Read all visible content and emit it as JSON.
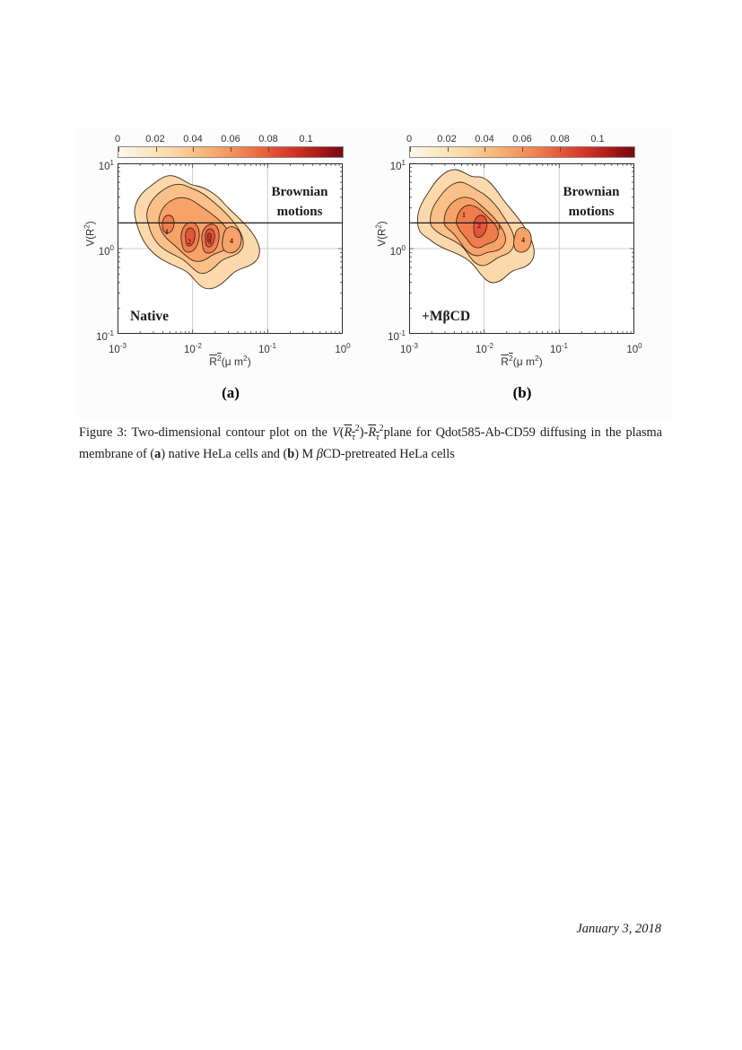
{
  "colors": {
    "contour_levels": [
      "#fbd9ac",
      "#fac089",
      "#f7a269",
      "#f07c4e",
      "#e5553a",
      "#c43227"
    ],
    "contour_stroke": "#3f2b16",
    "threshold_line": "#1a1a1a",
    "gridline": "#cccccc",
    "colorbar_min": "#fdf9ee",
    "colorbar_max": "#7a0b10"
  },
  "figure": {
    "colorbar": {
      "ticks": [
        "0",
        "0.02",
        "0.04",
        "0.06",
        "0.08",
        "0.1"
      ]
    },
    "axes": {
      "y_ticks": [
        {
          "b": "10",
          "e": "1"
        },
        {
          "b": "10",
          "e": "0"
        },
        {
          "b": "10",
          "e": "-1"
        }
      ],
      "x_ticks": [
        {
          "b": "10",
          "e": "-3"
        },
        {
          "b": "10",
          "e": "-2"
        },
        {
          "b": "10",
          "e": "-1"
        },
        {
          "b": "10",
          "e": "0"
        }
      ],
      "ylabel": {
        "pre": "V(R",
        "sup": "2",
        "post": ")"
      },
      "xlabel": {
        "r": "R",
        "rsup": "2",
        "mid": "(μ m",
        "msup": "2",
        "post": ")"
      }
    },
    "panels": [
      {
        "corner_label": "(a)",
        "region_label_line1": "Brownian",
        "region_label_line2": "motions",
        "condition_label": "Native",
        "peaks": [
          {
            "label": "1"
          },
          {
            "label": "2"
          },
          {
            "label": "3"
          },
          {
            "label": "4"
          }
        ]
      },
      {
        "corner_label": "(b)",
        "region_label_line1": "Brownian",
        "region_label_line2": "motions",
        "condition_label": "+MβCD",
        "peaks": [
          {
            "label": "1"
          },
          {
            "label": "2"
          },
          {
            "label": "3"
          },
          {
            "label": "4"
          }
        ]
      }
    ]
  },
  "chart_data": [
    {
      "type": "heatmap",
      "subtype": "filled-contour",
      "title": "Native",
      "xlabel": "R̄²(μ m²)",
      "ylabel": "V(R²)",
      "x_scale": "log",
      "y_scale": "log",
      "xlim": [
        0.001,
        1
      ],
      "ylim": [
        0.1,
        10
      ],
      "colorbar_range": [
        0,
        0.12
      ],
      "colorbar_tick_values": [
        0,
        0.02,
        0.04,
        0.06,
        0.08,
        0.1
      ],
      "threshold_line_y": 2,
      "annotations": [
        "Brownian motions",
        "Native"
      ],
      "peak_labels": [
        {
          "label": "1",
          "x": 0.0045,
          "y": 1.6
        },
        {
          "label": "2",
          "x": 0.009,
          "y": 1.25
        },
        {
          "label": "3",
          "x": 0.016,
          "y": 1.25
        },
        {
          "label": "4",
          "x": 0.032,
          "y": 1.27
        }
      ]
    },
    {
      "type": "heatmap",
      "subtype": "filled-contour",
      "title": "+MβCD",
      "xlabel": "R̄²(μ m²)",
      "ylabel": "V(R²)",
      "x_scale": "log",
      "y_scale": "log",
      "xlim": [
        0.001,
        1
      ],
      "ylim": [
        0.1,
        10
      ],
      "colorbar_range": [
        0,
        0.12
      ],
      "colorbar_tick_values": [
        0,
        0.02,
        0.04,
        0.06,
        0.08,
        0.1
      ],
      "threshold_line_y": 2,
      "annotations": [
        "Brownian motions",
        "+MβCD"
      ],
      "peak_labels": [
        {
          "label": "1",
          "x": 0.0054,
          "y": 2.5
        },
        {
          "label": "2",
          "x": 0.0085,
          "y": 1.9
        },
        {
          "label": "3",
          "x": 0.016,
          "y": 1.8
        },
        {
          "label": "4",
          "x": 0.034,
          "y": 1.3
        }
      ]
    }
  ],
  "caption": {
    "prefix": "Figure 3:  Two-dimensional contour plot on the ",
    "v": "V",
    "open": "(",
    "r1": "R",
    "tau1": "τ",
    "sup1": "2",
    "close1": ")-",
    "r2": "R",
    "tau2": "τ",
    "sup2": "2",
    "mid": "plane for Qdot585-Ab-CD59 diffusing in the plasma membrane of (",
    "bold_a": "a",
    "after_a": ") native HeLa cells and (",
    "bold_b": "b",
    "after_b": ") M ",
    "beta": "β",
    "tail": "CD-pretreated HeLa cells"
  },
  "footer": {
    "date": "January 3, 2018"
  }
}
